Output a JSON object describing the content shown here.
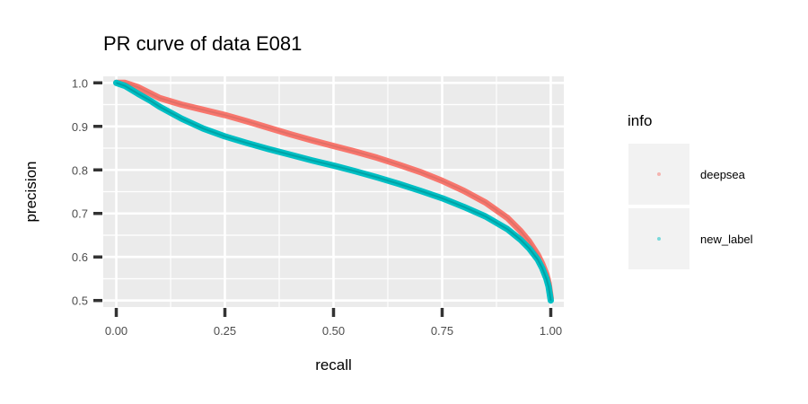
{
  "chart_data": {
    "type": "scatter",
    "title": "PR curve of data E081",
    "xlabel": "recall",
    "ylabel": "precision",
    "xlim": [
      -0.03,
      1.03
    ],
    "ylim": [
      0.485,
      1.015
    ],
    "x_ticks": [
      0.0,
      0.25,
      0.5,
      0.75,
      1.0
    ],
    "x_tick_labels": [
      "0.00",
      "0.25",
      "0.50",
      "0.75",
      "1.00"
    ],
    "y_ticks": [
      0.5,
      0.6,
      0.7,
      0.8,
      0.9,
      1.0
    ],
    "y_tick_labels": [
      "0.5",
      "0.6",
      "0.7",
      "0.8",
      "0.9",
      "1.0"
    ],
    "grid": true,
    "legend": {
      "title": "info",
      "placement": "right"
    },
    "series": [
      {
        "name": "deepsea",
        "color": "#F8766D",
        "points": [
          [
            0.0,
            1.0
          ],
          [
            0.02,
            1.0
          ],
          [
            0.05,
            0.99
          ],
          [
            0.08,
            0.975
          ],
          [
            0.1,
            0.965
          ],
          [
            0.15,
            0.95
          ],
          [
            0.2,
            0.938
          ],
          [
            0.25,
            0.926
          ],
          [
            0.3,
            0.912
          ],
          [
            0.35,
            0.897
          ],
          [
            0.4,
            0.882
          ],
          [
            0.45,
            0.868
          ],
          [
            0.5,
            0.855
          ],
          [
            0.55,
            0.842
          ],
          [
            0.6,
            0.828
          ],
          [
            0.65,
            0.812
          ],
          [
            0.7,
            0.795
          ],
          [
            0.75,
            0.775
          ],
          [
            0.8,
            0.752
          ],
          [
            0.85,
            0.725
          ],
          [
            0.9,
            0.69
          ],
          [
            0.93,
            0.66
          ],
          [
            0.95,
            0.636
          ],
          [
            0.97,
            0.605
          ],
          [
            0.98,
            0.585
          ],
          [
            0.99,
            0.56
          ],
          [
            0.995,
            0.54
          ],
          [
            1.0,
            0.505
          ]
        ]
      },
      {
        "name": "new_label",
        "color": "#00BFC4",
        "points": [
          [
            0.0,
            1.0
          ],
          [
            0.02,
            0.993
          ],
          [
            0.05,
            0.975
          ],
          [
            0.08,
            0.958
          ],
          [
            0.1,
            0.945
          ],
          [
            0.15,
            0.918
          ],
          [
            0.2,
            0.895
          ],
          [
            0.25,
            0.877
          ],
          [
            0.3,
            0.862
          ],
          [
            0.35,
            0.848
          ],
          [
            0.4,
            0.835
          ],
          [
            0.45,
            0.822
          ],
          [
            0.5,
            0.81
          ],
          [
            0.55,
            0.797
          ],
          [
            0.6,
            0.783
          ],
          [
            0.65,
            0.768
          ],
          [
            0.7,
            0.752
          ],
          [
            0.75,
            0.735
          ],
          [
            0.8,
            0.715
          ],
          [
            0.85,
            0.693
          ],
          [
            0.9,
            0.664
          ],
          [
            0.93,
            0.64
          ],
          [
            0.95,
            0.62
          ],
          [
            0.97,
            0.594
          ],
          [
            0.98,
            0.575
          ],
          [
            0.99,
            0.55
          ],
          [
            0.995,
            0.532
          ],
          [
            1.0,
            0.5
          ]
        ]
      }
    ]
  }
}
